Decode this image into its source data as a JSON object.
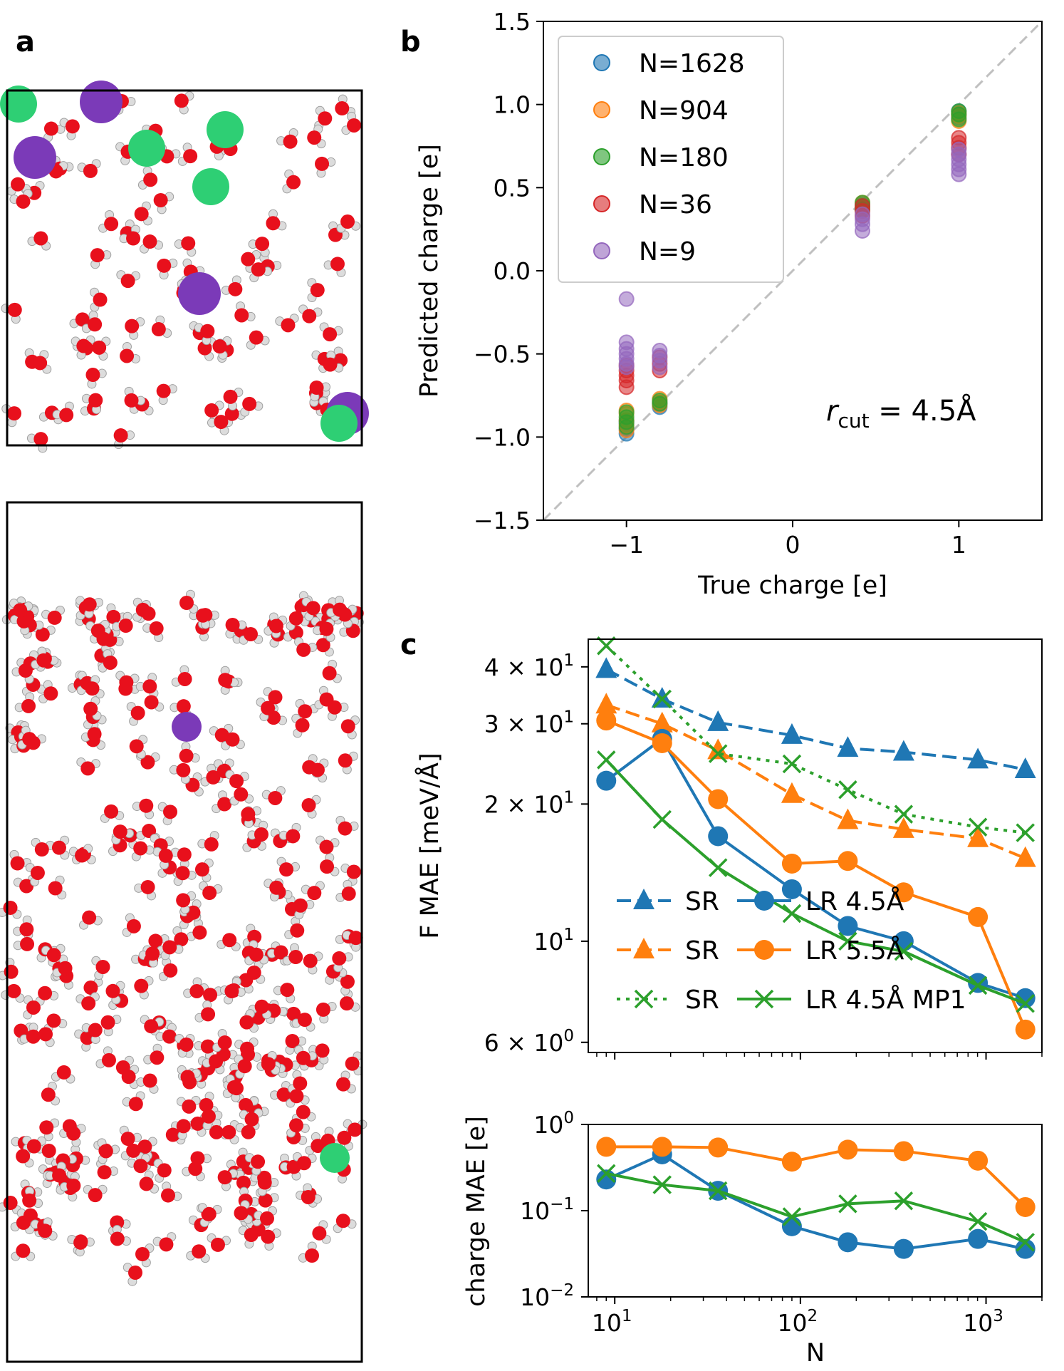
{
  "panel_labels": [
    "a",
    "b",
    "c"
  ],
  "colors": {
    "blue": "#1f77b4",
    "orange": "#ff7f0e",
    "green": "#2ca02c",
    "red": "#d62728",
    "purple": "#9467bd",
    "oxygen": "#e8101c",
    "hydrogen": "#dcdcdc",
    "cation": "#7b3ab8",
    "anion": "#2ecf74",
    "diag": "#c0c0c0"
  },
  "chart_data": [
    {
      "id": "b",
      "type": "scatter",
      "title": "",
      "xlabel": "True charge [e]",
      "ylabel": "Predicted charge [e]",
      "xlim": [
        -1.5,
        1.5
      ],
      "ylim": [
        -1.5,
        1.5
      ],
      "xticks": [
        -1,
        0,
        1
      ],
      "xtick_labels": [
        "−1",
        "0",
        "1"
      ],
      "yticks": [
        -1.5,
        -1.0,
        -0.5,
        0.0,
        0.5,
        1.0,
        1.5
      ],
      "ytick_labels": [
        "−1.5",
        "−1.0",
        "−0.5",
        "0.0",
        "0.5",
        "1.0",
        "1.5"
      ],
      "annotation_prefix": "r",
      "annotation_sub": "cut",
      "annotation_suffix": " = 4.5Å",
      "diagonal": "dashed",
      "legend_position": "top-left",
      "series": [
        {
          "name": "N=1628",
          "color": "#1f77b4",
          "groups": [
            {
              "x": -1.0,
              "y": [
                -0.98,
                -0.95,
                -0.92,
                -0.9
              ]
            },
            {
              "x": -0.8,
              "y": [
                -0.82,
                -0.8,
                -0.79
              ]
            },
            {
              "x": 0.42,
              "y": [
                0.37,
                0.38,
                0.4
              ]
            },
            {
              "x": 1.0,
              "y": [
                0.92,
                0.94,
                0.96
              ]
            }
          ]
        },
        {
          "name": "N=904",
          "color": "#ff7f0e",
          "groups": [
            {
              "x": -1.0,
              "y": [
                -0.96,
                -0.93,
                -0.9,
                -0.86,
                -0.84
              ]
            },
            {
              "x": -0.8,
              "y": [
                -0.81,
                -0.79,
                -0.77
              ]
            },
            {
              "x": 0.42,
              "y": [
                0.36,
                0.38,
                0.41
              ]
            },
            {
              "x": 1.0,
              "y": [
                0.9,
                0.93,
                0.95
              ]
            }
          ]
        },
        {
          "name": "N=180",
          "color": "#2ca02c",
          "groups": [
            {
              "x": -1.0,
              "y": [
                -0.94,
                -0.91,
                -0.88,
                -0.85
              ]
            },
            {
              "x": -0.8,
              "y": [
                -0.8,
                -0.78
              ]
            },
            {
              "x": 0.42,
              "y": [
                0.37,
                0.39,
                0.41
              ]
            },
            {
              "x": 1.0,
              "y": [
                0.91,
                0.94,
                0.96
              ]
            }
          ]
        },
        {
          "name": "N=36",
          "color": "#d62728",
          "groups": [
            {
              "x": -1.0,
              "y": [
                -0.7,
                -0.66,
                -0.63,
                -0.6,
                -0.57
              ]
            },
            {
              "x": -0.8,
              "y": [
                -0.6,
                -0.56,
                -0.52
              ]
            },
            {
              "x": 0.42,
              "y": [
                0.33,
                0.36,
                0.39
              ]
            },
            {
              "x": 1.0,
              "y": [
                0.7,
                0.74,
                0.77,
                0.8
              ]
            }
          ]
        },
        {
          "name": "N=9",
          "color": "#9467bd",
          "groups": [
            {
              "x": -1.0,
              "y": [
                -0.17,
                -0.43,
                -0.47,
                -0.5,
                -0.53,
                -0.56,
                -0.58
              ]
            },
            {
              "x": -0.8,
              "y": [
                -0.48,
                -0.51,
                -0.54,
                -0.58
              ]
            },
            {
              "x": 0.42,
              "y": [
                0.24,
                0.28,
                0.31,
                0.34
              ]
            },
            {
              "x": 1.0,
              "y": [
                0.58,
                0.61,
                0.64,
                0.67,
                0.7,
                0.73
              ]
            }
          ]
        }
      ]
    },
    {
      "id": "c_top",
      "type": "line",
      "scale": "log-log",
      "xlabel": "",
      "ylabel": "F MAE [meV/Å]",
      "xlim": [
        7.2,
        2000
      ],
      "ylim": [
        5.7,
        46
      ],
      "ytick_labels": [
        {
          "v": 6,
          "base": "6 × 10",
          "exp": "0"
        },
        {
          "v": 10,
          "base": "10",
          "exp": "1"
        },
        {
          "v": 20,
          "base": "2 × 10",
          "exp": "1"
        },
        {
          "v": 30,
          "base": "3 × 10",
          "exp": "1"
        },
        {
          "v": 40,
          "base": "4 × 10",
          "exp": "1"
        }
      ],
      "x": [
        9,
        18,
        36,
        90,
        180,
        360,
        904,
        1628
      ],
      "series": [
        {
          "name": "SR",
          "color": "#1f77b4",
          "dash": "dashed",
          "marker": "triangle",
          "values": [
            39.5,
            34,
            30.2,
            28.3,
            26.5,
            26,
            25,
            23.8
          ]
        },
        {
          "name": "SR",
          "color": "#ff7f0e",
          "dash": "dashed",
          "marker": "triangle",
          "values": [
            33,
            30,
            26.2,
            21,
            18.4,
            17.6,
            16.8,
            15.2
          ]
        },
        {
          "name": "SR",
          "color": "#2ca02c",
          "dash": "dotted",
          "marker": "x",
          "values": [
            44.5,
            34,
            25.8,
            24.5,
            21.5,
            19,
            17.8,
            17.3
          ]
        },
        {
          "name": "LR  4.5Å",
          "color": "#1f77b4",
          "dash": "solid",
          "marker": "circle",
          "values": [
            22.5,
            27.8,
            17,
            13,
            10.8,
            10,
            8.1,
            7.5
          ]
        },
        {
          "name": "LR  5.5Å",
          "color": "#ff7f0e",
          "dash": "solid",
          "marker": "circle",
          "values": [
            30.5,
            27.2,
            20.5,
            14.8,
            15,
            12.8,
            11.3,
            6.4
          ]
        },
        {
          "name": "LR  4.5Å MP1",
          "color": "#2ca02c",
          "dash": "solid",
          "marker": "x",
          "values": [
            25,
            18.5,
            14.5,
            11.5,
            10,
            9.5,
            8,
            7.3
          ]
        }
      ]
    },
    {
      "id": "c_bottom",
      "type": "line",
      "scale": "log-log",
      "xlabel": "N",
      "ylabel": "charge MAE [e]",
      "xlim": [
        7.2,
        2000
      ],
      "ylim": [
        0.01,
        1.0
      ],
      "xtick_labels": [
        {
          "v": 10,
          "base": "10",
          "exp": "1"
        },
        {
          "v": 100,
          "base": "10",
          "exp": "2"
        },
        {
          "v": 1000,
          "base": "10",
          "exp": "3"
        }
      ],
      "ytick_labels": [
        {
          "v": 0.01,
          "base": "10",
          "exp": "−2"
        },
        {
          "v": 0.1,
          "base": "10",
          "exp": "−1"
        },
        {
          "v": 1.0,
          "base": "10",
          "exp": "0"
        }
      ],
      "x": [
        9,
        18,
        36,
        90,
        180,
        360,
        904,
        1628
      ],
      "series": [
        {
          "name": "LR  4.5Å",
          "color": "#1f77b4",
          "marker": "circle",
          "values": [
            0.23,
            0.45,
            0.17,
            0.066,
            0.043,
            0.036,
            0.047,
            0.036
          ]
        },
        {
          "name": "LR  5.5Å",
          "color": "#ff7f0e",
          "marker": "circle",
          "values": [
            0.55,
            0.55,
            0.54,
            0.37,
            0.51,
            0.49,
            0.38,
            0.11
          ]
        },
        {
          "name": "LR  4.5Å MP1",
          "color": "#2ca02c",
          "marker": "x",
          "values": [
            0.27,
            0.2,
            0.17,
            0.085,
            0.12,
            0.13,
            0.075,
            0.043
          ]
        }
      ]
    }
  ]
}
